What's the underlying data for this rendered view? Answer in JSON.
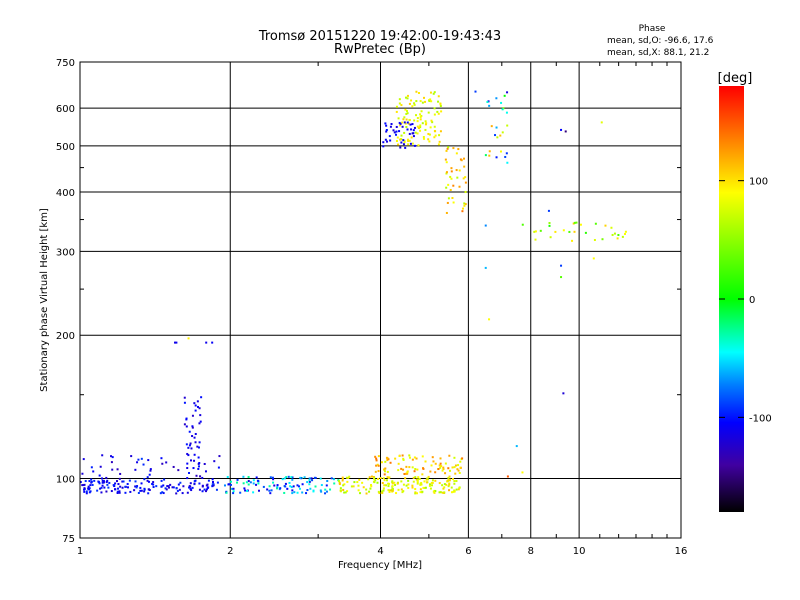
{
  "chart_data": {
    "type": "scatter",
    "title": "Tromsø 20151220 19:42:00-19:43:43",
    "subtitle": "RwPretec (Bp)",
    "xlabel": "Frequency [MHz]",
    "ylabel": "Stationary phase Virtual Height [km]",
    "x_scale": "log2",
    "y_scale": "log",
    "xlim": [
      1,
      16
    ],
    "ylim": [
      75,
      750
    ],
    "x_ticks": [
      1,
      2,
      4,
      6,
      8,
      10,
      16
    ],
    "x_tick_labels": [
      "1",
      "2",
      "4",
      "6",
      "8",
      "10",
      "16"
    ],
    "y_ticks": [
      75,
      100,
      200,
      300,
      400,
      500,
      600,
      750
    ],
    "y_tick_labels": [
      "75",
      "100",
      "200",
      "300",
      "400",
      "500",
      "600",
      "750"
    ],
    "grid": true,
    "stats": {
      "heading": "Phase",
      "o_line": "mean, sd,O: -96.6, 17.6",
      "x_line": "mean, sd,X:  88.1, 21.2"
    },
    "colorbar": {
      "label": "[deg]",
      "range": [
        -180,
        180
      ],
      "ticks": [
        100,
        0,
        -100
      ],
      "tick_labels": [
        "100",
        "0",
        "-100"
      ]
    },
    "clusters": [
      {
        "x": [
          1.0,
          1.9
        ],
        "y": [
          93,
          99
        ],
        "n": 150,
        "phase": [
          -125,
          -90
        ],
        "note": "low O-mode trace"
      },
      {
        "x": [
          1.0,
          1.95
        ],
        "y": [
          99,
          112
        ],
        "n": 50,
        "phase": [
          -130,
          -95
        ],
        "note": "scattered"
      },
      {
        "x": [
          1.62,
          1.75
        ],
        "y": [
          105,
          150
        ],
        "n": 40,
        "phase": [
          -125,
          -100
        ],
        "note": "vertical spike"
      },
      {
        "x": [
          1.95,
          3.3
        ],
        "y": [
          93,
          101
        ],
        "n": 110,
        "phase": [
          -120,
          -20
        ],
        "note": "trace mid"
      },
      {
        "x": [
          3.3,
          5.8
        ],
        "y": [
          93,
          101
        ],
        "n": 180,
        "phase": [
          55,
          115
        ],
        "note": "trace high"
      },
      {
        "x": [
          3.9,
          5.9
        ],
        "y": [
          102,
          112
        ],
        "n": 90,
        "phase": [
          70,
          140
        ],
        "note": "upper band"
      },
      {
        "x": [
          4.3,
          5.3
        ],
        "y": [
          500,
          650
        ],
        "n": 110,
        "phase": [
          60,
          110
        ],
        "note": "F-region yellow"
      },
      {
        "x": [
          4.05,
          4.7
        ],
        "y": [
          495,
          560
        ],
        "n": 40,
        "phase": [
          -120,
          -100
        ],
        "note": "F-region blue"
      },
      {
        "x": [
          5.4,
          5.95
        ],
        "y": [
          360,
          500
        ],
        "n": 40,
        "phase": [
          60,
          140
        ],
        "note": "F-region descending"
      },
      {
        "x": [
          6.4,
          7.2
        ],
        "y": [
          460,
          650
        ],
        "n": 25,
        "phase": [
          -120,
          120
        ],
        "note": "F-region scattered"
      },
      {
        "x": [
          7.7,
          12.5
        ],
        "y": [
          315,
          345
        ],
        "n": 30,
        "phase": [
          0,
          110
        ],
        "note": "F-region far"
      }
    ],
    "points": [
      {
        "x": 1.55,
        "y": 193,
        "phase": -115
      },
      {
        "x": 1.56,
        "y": 193,
        "phase": -110
      },
      {
        "x": 1.65,
        "y": 197,
        "phase": 95
      },
      {
        "x": 1.79,
        "y": 193,
        "phase": -112
      },
      {
        "x": 1.84,
        "y": 193,
        "phase": -108
      },
      {
        "x": 1.33,
        "y": 110,
        "phase": -90
      },
      {
        "x": 9.2,
        "y": 540,
        "phase": -105
      },
      {
        "x": 9.4,
        "y": 536,
        "phase": -150
      },
      {
        "x": 11.1,
        "y": 560,
        "phase": 80
      },
      {
        "x": 6.6,
        "y": 216,
        "phase": 90
      },
      {
        "x": 6.5,
        "y": 277,
        "phase": -60
      },
      {
        "x": 6.5,
        "y": 340,
        "phase": -70
      },
      {
        "x": 8.7,
        "y": 365,
        "phase": -90
      },
      {
        "x": 9.2,
        "y": 280,
        "phase": -90
      },
      {
        "x": 9.2,
        "y": 265,
        "phase": 30
      },
      {
        "x": 9.3,
        "y": 151,
        "phase": -120
      },
      {
        "x": 7.5,
        "y": 117,
        "phase": -60
      },
      {
        "x": 10.7,
        "y": 290,
        "phase": 90
      },
      {
        "x": 6.2,
        "y": 650,
        "phase": -90
      },
      {
        "x": 7.7,
        "y": 103,
        "phase": 90
      },
      {
        "x": 7.2,
        "y": 101,
        "phase": 150
      }
    ]
  }
}
